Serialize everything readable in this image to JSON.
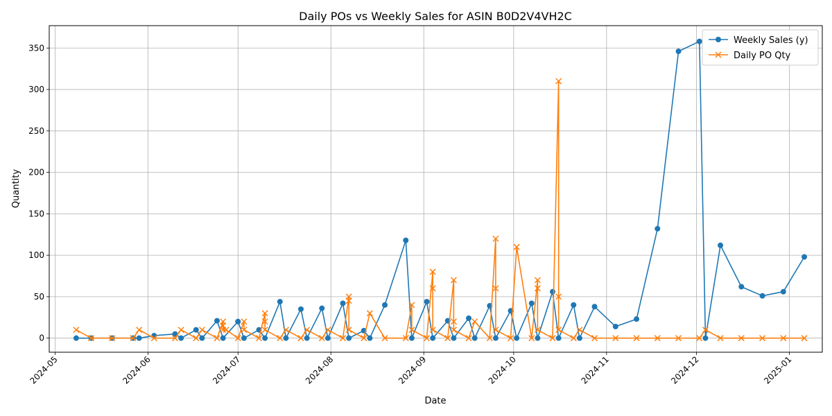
{
  "chart_data": {
    "type": "line",
    "title": "Daily POs vs Weekly Sales for ASIN B0D2V4VH2C",
    "xlabel": "Date",
    "ylabel": "Quantity",
    "x_range": [
      "2024-04-29",
      "2025-01-12"
    ],
    "ylim": [
      -17,
      377
    ],
    "x_ticks": [
      "2024-05",
      "2024-06",
      "2024-07",
      "2024-08",
      "2024-09",
      "2024-10",
      "2024-11",
      "2024-12",
      "2025-01"
    ],
    "y_ticks": [
      0,
      50,
      100,
      150,
      200,
      250,
      300,
      350
    ],
    "grid": true,
    "legend_position": "top-right",
    "series": [
      {
        "name": "Weekly Sales (y)",
        "color": "#1f77b4",
        "marker": "circle",
        "points": [
          [
            "2024-05-08",
            0
          ],
          [
            "2024-05-13",
            0
          ],
          [
            "2024-05-20",
            0
          ],
          [
            "2024-05-27",
            0
          ],
          [
            "2024-05-29",
            0
          ],
          [
            "2024-06-03",
            3
          ],
          [
            "2024-06-10",
            5
          ],
          [
            "2024-06-12",
            0
          ],
          [
            "2024-06-17",
            10
          ],
          [
            "2024-06-19",
            0
          ],
          [
            "2024-06-24",
            21
          ],
          [
            "2024-06-26",
            0
          ],
          [
            "2024-07-01",
            20
          ],
          [
            "2024-07-03",
            0
          ],
          [
            "2024-07-08",
            10
          ],
          [
            "2024-07-10",
            0
          ],
          [
            "2024-07-15",
            44
          ],
          [
            "2024-07-17",
            0
          ],
          [
            "2024-07-22",
            35
          ],
          [
            "2024-07-24",
            0
          ],
          [
            "2024-07-29",
            36
          ],
          [
            "2024-07-31",
            0
          ],
          [
            "2024-08-05",
            42
          ],
          [
            "2024-08-07",
            0
          ],
          [
            "2024-08-12",
            9
          ],
          [
            "2024-08-14",
            0
          ],
          [
            "2024-08-19",
            40
          ],
          [
            "2024-08-26",
            118
          ],
          [
            "2024-08-28",
            0
          ],
          [
            "2024-09-02",
            44
          ],
          [
            "2024-09-04",
            0
          ],
          [
            "2024-09-09",
            21
          ],
          [
            "2024-09-11",
            0
          ],
          [
            "2024-09-16",
            24
          ],
          [
            "2024-09-18",
            0
          ],
          [
            "2024-09-23",
            39
          ],
          [
            "2024-09-25",
            0
          ],
          [
            "2024-09-30",
            33
          ],
          [
            "2024-10-02",
            0
          ],
          [
            "2024-10-07",
            42
          ],
          [
            "2024-10-09",
            0
          ],
          [
            "2024-10-14",
            56
          ],
          [
            "2024-10-16",
            0
          ],
          [
            "2024-10-21",
            40
          ],
          [
            "2024-10-23",
            0
          ],
          [
            "2024-10-28",
            38
          ],
          [
            "2024-11-04",
            14
          ],
          [
            "2024-11-11",
            23
          ],
          [
            "2024-11-18",
            132
          ],
          [
            "2024-11-25",
            346
          ],
          [
            "2024-12-02",
            358
          ],
          [
            "2024-12-04",
            0
          ],
          [
            "2024-12-09",
            112
          ],
          [
            "2024-12-16",
            62
          ],
          [
            "2024-12-23",
            51
          ],
          [
            "2024-12-30",
            56
          ],
          [
            "2025-01-06",
            98
          ]
        ]
      },
      {
        "name": "Daily PO Qty",
        "color": "#ff7f0e",
        "marker": "x",
        "points": [
          [
            "2024-05-08",
            10
          ],
          [
            "2024-05-13",
            0
          ],
          [
            "2024-05-20",
            0
          ],
          [
            "2024-05-27",
            0
          ],
          [
            "2024-05-29",
            10
          ],
          [
            "2024-06-03",
            0
          ],
          [
            "2024-06-10",
            0
          ],
          [
            "2024-06-12",
            10
          ],
          [
            "2024-06-17",
            0
          ],
          [
            "2024-06-19",
            10
          ],
          [
            "2024-06-24",
            0
          ],
          [
            "2024-06-26",
            20
          ],
          [
            "2024-06-26",
            15
          ],
          [
            "2024-06-26",
            10
          ],
          [
            "2024-06-27",
            10
          ],
          [
            "2024-07-01",
            0
          ],
          [
            "2024-07-03",
            20
          ],
          [
            "2024-07-03",
            10
          ],
          [
            "2024-07-08",
            0
          ],
          [
            "2024-07-10",
            30
          ],
          [
            "2024-07-10",
            20
          ],
          [
            "2024-07-10",
            10
          ],
          [
            "2024-07-15",
            0
          ],
          [
            "2024-07-17",
            10
          ],
          [
            "2024-07-22",
            0
          ],
          [
            "2024-07-24",
            10
          ],
          [
            "2024-07-29",
            0
          ],
          [
            "2024-07-31",
            10
          ],
          [
            "2024-08-05",
            0
          ],
          [
            "2024-08-07",
            50
          ],
          [
            "2024-08-07",
            45
          ],
          [
            "2024-08-07",
            10
          ],
          [
            "2024-08-12",
            0
          ],
          [
            "2024-08-14",
            30
          ],
          [
            "2024-08-19",
            0
          ],
          [
            "2024-08-26",
            0
          ],
          [
            "2024-08-28",
            40
          ],
          [
            "2024-08-28",
            10
          ],
          [
            "2024-09-02",
            0
          ],
          [
            "2024-09-04",
            80
          ],
          [
            "2024-09-04",
            60
          ],
          [
            "2024-09-04",
            10
          ],
          [
            "2024-09-09",
            0
          ],
          [
            "2024-09-11",
            70
          ],
          [
            "2024-09-11",
            20
          ],
          [
            "2024-09-11",
            10
          ],
          [
            "2024-09-16",
            0
          ],
          [
            "2024-09-18",
            20
          ],
          [
            "2024-09-23",
            0
          ],
          [
            "2024-09-25",
            120
          ],
          [
            "2024-09-25",
            60
          ],
          [
            "2024-09-25",
            10
          ],
          [
            "2024-09-30",
            0
          ],
          [
            "2024-10-02",
            110
          ],
          [
            "2024-10-07",
            0
          ],
          [
            "2024-10-09",
            70
          ],
          [
            "2024-10-09",
            60
          ],
          [
            "2024-10-09",
            10
          ],
          [
            "2024-10-14",
            0
          ],
          [
            "2024-10-16",
            310
          ],
          [
            "2024-10-16",
            50
          ],
          [
            "2024-10-16",
            10
          ],
          [
            "2024-10-21",
            0
          ],
          [
            "2024-10-23",
            10
          ],
          [
            "2024-10-28",
            0
          ],
          [
            "2024-11-04",
            0
          ],
          [
            "2024-11-11",
            0
          ],
          [
            "2024-11-18",
            0
          ],
          [
            "2024-11-25",
            0
          ],
          [
            "2024-12-02",
            0
          ],
          [
            "2024-12-04",
            10
          ],
          [
            "2024-12-09",
            0
          ],
          [
            "2024-12-16",
            0
          ],
          [
            "2024-12-23",
            0
          ],
          [
            "2024-12-30",
            0
          ],
          [
            "2025-01-06",
            0
          ]
        ]
      }
    ]
  }
}
